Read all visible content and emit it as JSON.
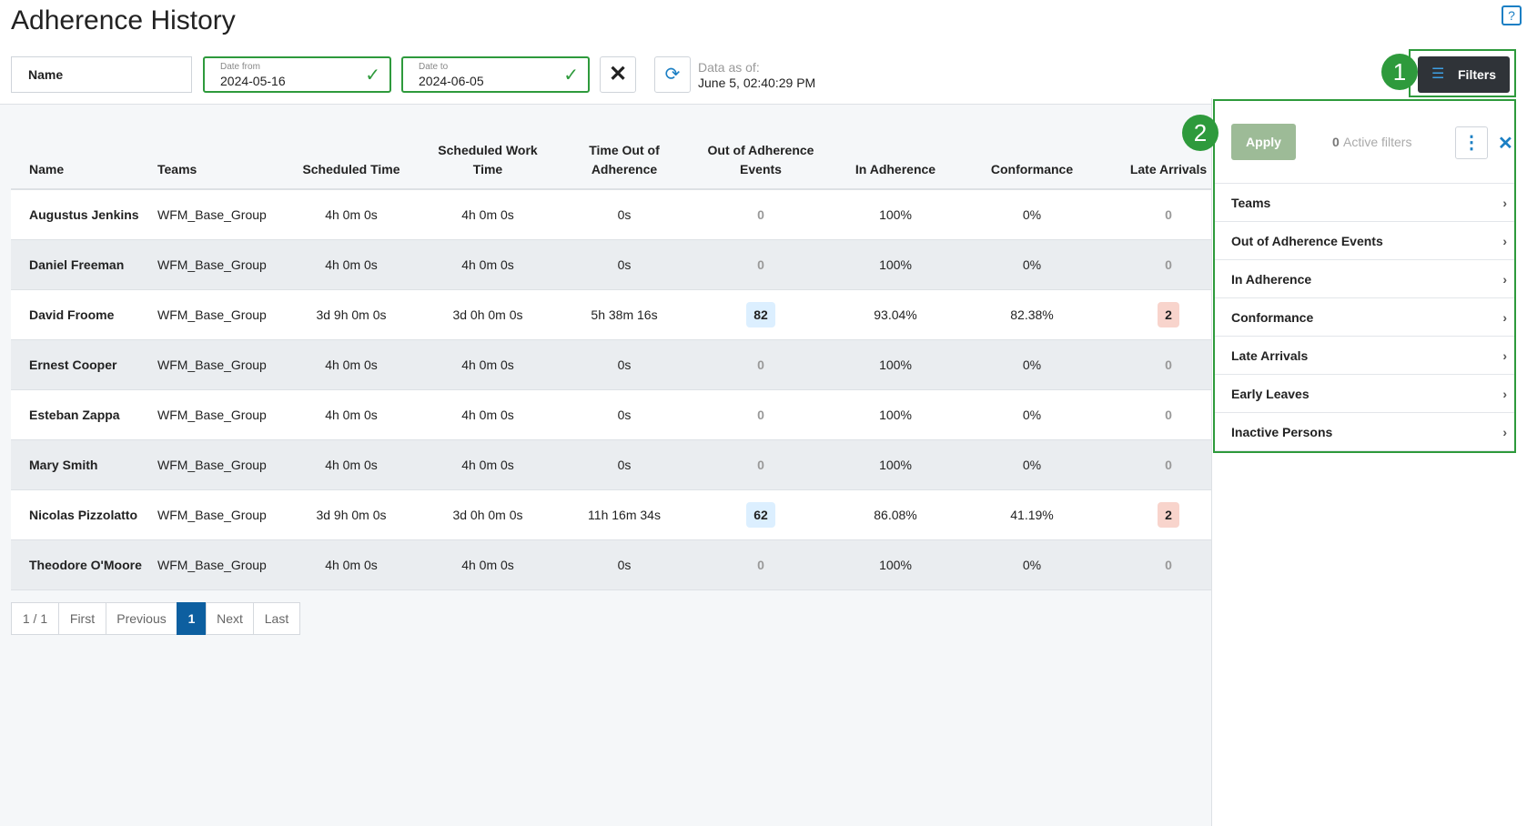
{
  "header": {
    "title": "Adherence History",
    "name_field": "Name",
    "date_from": {
      "label": "Date from",
      "value": "2024-05-16"
    },
    "date_to": {
      "label": "Date to",
      "value": "2024-06-05"
    },
    "data_as_of": {
      "label": "Data as of:",
      "value": "June 5, 02:40:29 PM"
    },
    "filters_button": "Filters"
  },
  "callouts": [
    "1",
    "2"
  ],
  "table": {
    "columns": [
      "Name",
      "Teams",
      "Scheduled Time",
      "Scheduled Work Time",
      "Time Out of Adherence",
      "Out of Adherence Events",
      "In Adherence",
      "Conformance",
      "Late Arrivals"
    ],
    "rows": [
      [
        "Augustus Jenkins",
        "WFM_Base_Group",
        "4h 0m 0s",
        "4h 0m 0s",
        "0s",
        "0",
        "100%",
        "0%",
        "0"
      ],
      [
        "Daniel Freeman",
        "WFM_Base_Group",
        "4h 0m 0s",
        "4h 0m 0s",
        "0s",
        "0",
        "100%",
        "0%",
        "0"
      ],
      [
        "David Froome",
        "WFM_Base_Group",
        "3d 9h 0m 0s",
        "3d 0h 0m 0s",
        "5h 38m 16s",
        "82",
        "93.04%",
        "82.38%",
        "2"
      ],
      [
        "Ernest Cooper",
        "WFM_Base_Group",
        "4h 0m 0s",
        "4h 0m 0s",
        "0s",
        "0",
        "100%",
        "0%",
        "0"
      ],
      [
        "Esteban Zappa",
        "WFM_Base_Group",
        "4h 0m 0s",
        "4h 0m 0s",
        "0s",
        "0",
        "100%",
        "0%",
        "0"
      ],
      [
        "Mary Smith",
        "WFM_Base_Group",
        "4h 0m 0s",
        "4h 0m 0s",
        "0s",
        "0",
        "100%",
        "0%",
        "0"
      ],
      [
        "Nicolas Pizzolatto",
        "WFM_Base_Group",
        "3d 9h 0m 0s",
        "3d 0h 0m 0s",
        "11h 16m 34s",
        "62",
        "86.08%",
        "41.19%",
        "2"
      ],
      [
        "Theodore O'Moore",
        "WFM_Base_Group",
        "4h 0m 0s",
        "4h 0m 0s",
        "0s",
        "0",
        "100%",
        "0%",
        "0"
      ]
    ]
  },
  "pagination": [
    "1 / 1",
    "First",
    "Previous",
    "1",
    "Next",
    "Last"
  ],
  "filter_panel": {
    "apply": "Apply",
    "active_count": "0",
    "active_label": "Active filters",
    "items": [
      "Teams",
      "Out of Adherence Events",
      "In Adherence",
      "Conformance",
      "Late Arrivals",
      "Early Leaves",
      "Inactive Persons"
    ]
  }
}
